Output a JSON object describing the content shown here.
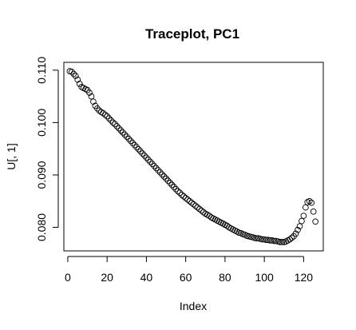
{
  "chart_data": {
    "type": "scatter",
    "title": "Traceplot, PC1",
    "xlabel": "Index",
    "ylabel": "U[, 1]",
    "xlim": [
      -2,
      130
    ],
    "ylim": [
      0.0755,
      0.1115
    ],
    "xticks": [
      0,
      20,
      40,
      60,
      80,
      100,
      120
    ],
    "yticks": [
      0.08,
      0.09,
      0.1,
      0.11
    ],
    "xtick_labels": [
      "0",
      "20",
      "40",
      "60",
      "80",
      "100",
      "120"
    ],
    "ytick_labels": [
      "0.080",
      "0.090",
      "0.100",
      "0.110"
    ],
    "marker": "open-circle",
    "grid": false,
    "legend": "none",
    "points": {
      "x": [
        1,
        2,
        3,
        4,
        5,
        6,
        7,
        8,
        9,
        10,
        11,
        12,
        13,
        14,
        15,
        16,
        17,
        18,
        19,
        20,
        21,
        22,
        23,
        24,
        25,
        26,
        27,
        28,
        29,
        30,
        31,
        32,
        33,
        34,
        35,
        36,
        37,
        38,
        39,
        40,
        41,
        42,
        43,
        44,
        45,
        46,
        47,
        48,
        49,
        50,
        51,
        52,
        53,
        54,
        55,
        56,
        57,
        58,
        59,
        60,
        61,
        62,
        63,
        64,
        65,
        66,
        67,
        68,
        69,
        70,
        71,
        72,
        73,
        74,
        75,
        76,
        77,
        78,
        79,
        80,
        81,
        82,
        83,
        84,
        85,
        86,
        87,
        88,
        89,
        90,
        91,
        92,
        93,
        94,
        95,
        96,
        97,
        98,
        99,
        100,
        101,
        102,
        103,
        104,
        105,
        106,
        107,
        108,
        109,
        110,
        111,
        112,
        113,
        114,
        115,
        116,
        117,
        118,
        119,
        120,
        121,
        122,
        123,
        124,
        125,
        126
      ],
      "y": [
        0.1098,
        0.1097,
        0.1093,
        0.1089,
        0.1082,
        0.1074,
        0.1068,
        0.1066,
        0.1064,
        0.1062,
        0.1057,
        0.105,
        0.104,
        0.1032,
        0.1027,
        0.1023,
        0.102,
        0.1018,
        0.1015,
        0.1012,
        0.1008,
        0.1004,
        0.1,
        0.0997,
        0.0993,
        0.0989,
        0.0985,
        0.0981,
        0.0977,
        0.0973,
        0.0969,
        0.0965,
        0.0961,
        0.0957,
        0.0953,
        0.0949,
        0.0945,
        0.0941,
        0.0937,
        0.0933,
        0.0929,
        0.0925,
        0.0921,
        0.0917,
        0.0913,
        0.0909,
        0.0905,
        0.0901,
        0.0897,
        0.0893,
        0.0889,
        0.0885,
        0.0881,
        0.0877,
        0.0873,
        0.0869,
        0.0866,
        0.0862,
        0.0859,
        0.0856,
        0.0853,
        0.085,
        0.0847,
        0.0844,
        0.0841,
        0.0838,
        0.0835,
        0.0832,
        0.0829,
        0.0826,
        0.0824,
        0.0822,
        0.0819,
        0.0817,
        0.0815,
        0.0813,
        0.0811,
        0.0809,
        0.0807,
        0.0805,
        0.0803,
        0.08,
        0.0798,
        0.0796,
        0.0794,
        0.0792,
        0.079,
        0.0789,
        0.0787,
        0.0786,
        0.0784,
        0.0783,
        0.0782,
        0.0781,
        0.078,
        0.0779,
        0.0779,
        0.0778,
        0.0777,
        0.0777,
        0.0776,
        0.0776,
        0.0775,
        0.0775,
        0.0774,
        0.0774,
        0.0773,
        0.0772,
        0.0772,
        0.0772,
        0.0773,
        0.0775,
        0.0777,
        0.078,
        0.0783,
        0.0788,
        0.0795,
        0.0802,
        0.0812,
        0.0822,
        0.0838,
        0.0848,
        0.085,
        0.0847,
        0.083,
        0.0811
      ]
    }
  }
}
